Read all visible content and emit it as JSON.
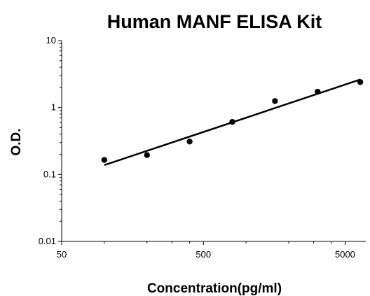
{
  "chart_data": {
    "type": "scatter",
    "title": "Human MANF ELISA Kit",
    "xlabel": "Concentration(pg/ml)",
    "ylabel": "O.D.",
    "x_scale": "log",
    "y_scale": "log",
    "xlim": [
      50,
      7000
    ],
    "ylim": [
      0.01,
      10
    ],
    "x_ticks": [
      "50",
      "500",
      "5000"
    ],
    "y_ticks": [
      "10",
      "1",
      "0.1",
      "0.01"
    ],
    "grid": false,
    "legend": "none",
    "series": [
      {
        "points": [
          {
            "x": 100,
            "y": 0.165
          },
          {
            "x": 200,
            "y": 0.195
          },
          {
            "x": 400,
            "y": 0.31
          },
          {
            "x": 800,
            "y": 0.61
          },
          {
            "x": 1600,
            "y": 1.25
          },
          {
            "x": 3200,
            "y": 1.72
          },
          {
            "x": 6400,
            "y": 2.4
          }
        ]
      }
    ],
    "fit_line": {
      "x": [
        100,
        6400
      ],
      "y": [
        0.138,
        2.62
      ]
    },
    "colors": {
      "marker": "#000000",
      "line": "#000000",
      "axis": "#000000"
    }
  }
}
